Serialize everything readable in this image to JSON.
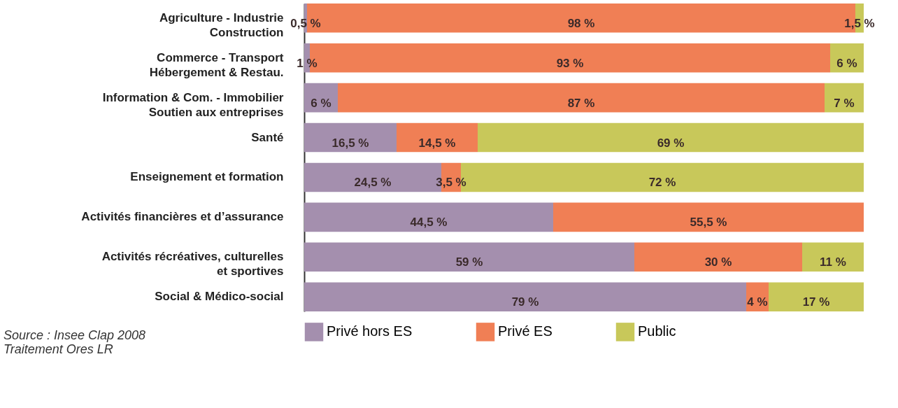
{
  "chart_data": {
    "type": "bar",
    "orientation": "horizontal",
    "stacked": true,
    "legend": "bottom",
    "grid": false,
    "categories": [
      "Agriculture - Industrie\nConstruction",
      "Commerce - Transport\nHébergement & Restau.",
      "Information & Com. - Immobilier\nSoutien aux entreprises",
      "Santé",
      "Enseignement et formation",
      "Activités financières et d’assurance",
      "Activités récréatives, culturelles\net sportives",
      "Social & Médico-social"
    ],
    "series": [
      {
        "name": "Privé hors ES",
        "color": "#a48fae",
        "values": [
          0.5,
          1,
          6,
          16.5,
          24.5,
          44.5,
          59,
          79
        ],
        "value_labels": [
          "0,5 %",
          "1 %",
          "6 %",
          "16,5 %",
          "24,5 %",
          "44,5 %",
          "59 %",
          "79 %"
        ]
      },
      {
        "name": "Privé ES",
        "color": "#f07f55",
        "values": [
          98,
          93,
          87,
          14.5,
          3.5,
          55.5,
          30,
          4
        ],
        "value_labels": [
          "98 %",
          "93 %",
          "87 %",
          "14,5 %",
          "3,5 %",
          "55,5 %",
          "30 %",
          "4 %"
        ]
      },
      {
        "name": "Public",
        "color": "#c8c85a",
        "values": [
          1.5,
          6,
          7,
          69,
          72,
          0,
          11,
          17
        ],
        "value_labels": [
          "1,5 %",
          "6 %",
          "7 %",
          "69 %",
          "72 %",
          null,
          "11 %",
          "17 %"
        ]
      }
    ],
    "annotations": [
      "Source : Insee Clap 2008",
      "Traitement Ores LR"
    ]
  }
}
